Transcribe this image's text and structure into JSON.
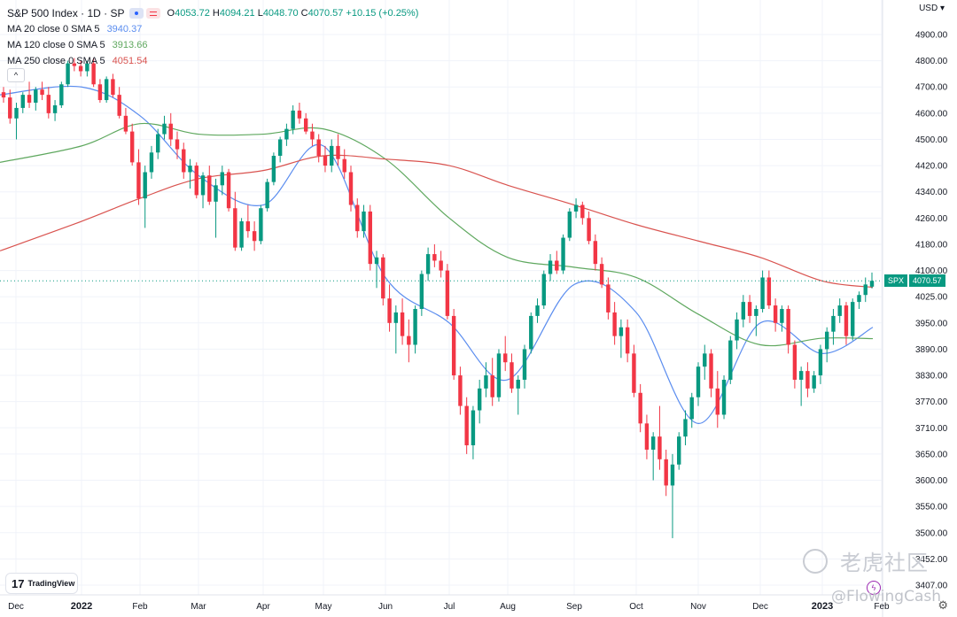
{
  "header": {
    "title": "S&P 500 Index · 1D · SP",
    "ohlc": {
      "open_label": "O",
      "open": "4053.72",
      "high_label": "H",
      "high": "4094.21",
      "low_label": "L",
      "low": "4048.70",
      "close_label": "C",
      "close": "4070.57",
      "change": "+10.15 (+0.25%)"
    },
    "currency": "USD"
  },
  "moving_averages": [
    {
      "label": "MA 20 close 0 SMA 5",
      "value": "3940.37",
      "color": "#5b8def"
    },
    {
      "label": "MA 120 close 0 SMA 5",
      "value": "3913.66",
      "color": "#5fa85f"
    },
    {
      "label": "MA 250 close 0 SMA 5",
      "value": "4051.54",
      "color": "#d9534f"
    }
  ],
  "collapse_label": "^",
  "price_badge": {
    "symbol": "SPX",
    "value": "4070.57"
  },
  "logo_text": "TradingView",
  "logo_mark": "17",
  "watermark_text": "老虎社区",
  "credit_text": "@FlowingCash",
  "colors": {
    "up": "#089981",
    "down": "#f23645",
    "last_price_line": "#089981",
    "grid": "#f0f3fa"
  },
  "chart_data": {
    "type": "candlestick",
    "title": "S&P 500 Index · 1D · SP",
    "y_axis": {
      "position": "right",
      "ticks": [
        "4900.00",
        "4800.00",
        "4700.00",
        "4600.00",
        "4500.00",
        "4420.00",
        "4340.00",
        "4260.00",
        "4180.00",
        "4100.00",
        "4025.00",
        "3950.00",
        "3890.00",
        "3830.00",
        "3770.00",
        "3710.00",
        "3650.00",
        "3600.00",
        "3550.00",
        "3500.00",
        "3452.00",
        "3407.00"
      ],
      "ylim": [
        3390,
        4960
      ]
    },
    "x_axis": {
      "ticks": [
        "Dec",
        "2022",
        "Feb",
        "Mar",
        "Apr",
        "May",
        "Jun",
        "Jul",
        "Aug",
        "Sep",
        "Oct",
        "Nov",
        "Dec",
        "2023",
        "Feb"
      ],
      "bold_ticks": [
        "2022",
        "2023"
      ]
    },
    "last_price": 4070.57,
    "series": [
      {
        "name": "MA 20 close 0 SMA 5",
        "x": [
          "Dec",
          "2022",
          "Feb",
          "Mar",
          "Apr",
          "May",
          "Jun",
          "Jul",
          "Aug",
          "Sep",
          "Oct",
          "Nov",
          "Dec",
          "2023",
          "Feb"
        ],
        "y": [
          4670,
          4700,
          4590,
          4390,
          4300,
          4480,
          4080,
          3950,
          3820,
          4060,
          3980,
          3720,
          3950,
          3880,
          3940
        ]
      },
      {
        "name": "MA 120 close 0 SMA 5",
        "x": [
          "Dec",
          "2022",
          "Feb",
          "Mar",
          "Apr",
          "May",
          "Jun",
          "Jul",
          "Aug",
          "Sep",
          "Oct",
          "Nov",
          "Dec",
          "2023",
          "Feb"
        ],
        "y": [
          4430,
          4480,
          4560,
          4520,
          4520,
          4540,
          4440,
          4260,
          4140,
          4110,
          4080,
          3975,
          3900,
          3915,
          3914
        ]
      },
      {
        "name": "MA 250 close 0 SMA 5",
        "x": [
          "Dec",
          "2022",
          "Feb",
          "Mar",
          "Apr",
          "May",
          "Jun",
          "Jul",
          "Aug",
          "Sep",
          "Oct",
          "Nov",
          "Dec",
          "2023",
          "Feb"
        ],
        "y": [
          4160,
          4250,
          4320,
          4380,
          4405,
          4450,
          4440,
          4420,
          4360,
          4300,
          4240,
          4190,
          4140,
          4070,
          4052
        ]
      }
    ],
    "candles": [
      {
        "o": 4680,
        "h": 4700,
        "l": 4640,
        "c": 4660
      },
      {
        "o": 4660,
        "h": 4690,
        "l": 4560,
        "c": 4580
      },
      {
        "o": 4580,
        "h": 4640,
        "l": 4500,
        "c": 4620
      },
      {
        "o": 4620,
        "h": 4680,
        "l": 4600,
        "c": 4670
      },
      {
        "o": 4670,
        "h": 4720,
        "l": 4620,
        "c": 4640
      },
      {
        "o": 4640,
        "h": 4700,
        "l": 4610,
        "c": 4690
      },
      {
        "o": 4690,
        "h": 4720,
        "l": 4650,
        "c": 4670
      },
      {
        "o": 4670,
        "h": 4700,
        "l": 4580,
        "c": 4600
      },
      {
        "o": 4600,
        "h": 4650,
        "l": 4570,
        "c": 4630
      },
      {
        "o": 4630,
        "h": 4720,
        "l": 4620,
        "c": 4710
      },
      {
        "o": 4710,
        "h": 4800,
        "l": 4700,
        "c": 4790
      },
      {
        "o": 4790,
        "h": 4810,
        "l": 4760,
        "c": 4780
      },
      {
        "o": 4780,
        "h": 4800,
        "l": 4740,
        "c": 4760
      },
      {
        "o": 4760,
        "h": 4800,
        "l": 4740,
        "c": 4790
      },
      {
        "o": 4790,
        "h": 4810,
        "l": 4700,
        "c": 4710
      },
      {
        "o": 4710,
        "h": 4730,
        "l": 4640,
        "c": 4650
      },
      {
        "o": 4650,
        "h": 4740,
        "l": 4640,
        "c": 4730
      },
      {
        "o": 4730,
        "h": 4750,
        "l": 4660,
        "c": 4670
      },
      {
        "o": 4670,
        "h": 4700,
        "l": 4580,
        "c": 4590
      },
      {
        "o": 4590,
        "h": 4620,
        "l": 4520,
        "c": 4530
      },
      {
        "o": 4530,
        "h": 4560,
        "l": 4420,
        "c": 4430
      },
      {
        "o": 4430,
        "h": 4470,
        "l": 4300,
        "c": 4320
      },
      {
        "o": 4320,
        "h": 4420,
        "l": 4230,
        "c": 4400
      },
      {
        "o": 4400,
        "h": 4480,
        "l": 4380,
        "c": 4460
      },
      {
        "o": 4460,
        "h": 4540,
        "l": 4440,
        "c": 4520
      },
      {
        "o": 4520,
        "h": 4590,
        "l": 4500,
        "c": 4560
      },
      {
        "o": 4560,
        "h": 4600,
        "l": 4480,
        "c": 4500
      },
      {
        "o": 4500,
        "h": 4530,
        "l": 4440,
        "c": 4470
      },
      {
        "o": 4470,
        "h": 4490,
        "l": 4380,
        "c": 4400
      },
      {
        "o": 4400,
        "h": 4440,
        "l": 4350,
        "c": 4420
      },
      {
        "o": 4420,
        "h": 4430,
        "l": 4320,
        "c": 4330
      },
      {
        "o": 4330,
        "h": 4400,
        "l": 4290,
        "c": 4390
      },
      {
        "o": 4390,
        "h": 4420,
        "l": 4300,
        "c": 4310
      },
      {
        "o": 4310,
        "h": 4380,
        "l": 4200,
        "c": 4360
      },
      {
        "o": 4360,
        "h": 4420,
        "l": 4330,
        "c": 4400
      },
      {
        "o": 4400,
        "h": 4410,
        "l": 4280,
        "c": 4290
      },
      {
        "o": 4290,
        "h": 4340,
        "l": 4160,
        "c": 4170
      },
      {
        "o": 4170,
        "h": 4260,
        "l": 4160,
        "c": 4250
      },
      {
        "o": 4250,
        "h": 4300,
        "l": 4200,
        "c": 4220
      },
      {
        "o": 4220,
        "h": 4250,
        "l": 4160,
        "c": 4190
      },
      {
        "o": 4190,
        "h": 4300,
        "l": 4180,
        "c": 4290
      },
      {
        "o": 4290,
        "h": 4380,
        "l": 4280,
        "c": 4370
      },
      {
        "o": 4370,
        "h": 4460,
        "l": 4360,
        "c": 4450
      },
      {
        "o": 4450,
        "h": 4510,
        "l": 4430,
        "c": 4500
      },
      {
        "o": 4500,
        "h": 4560,
        "l": 4480,
        "c": 4540
      },
      {
        "o": 4540,
        "h": 4630,
        "l": 4520,
        "c": 4610
      },
      {
        "o": 4610,
        "h": 4640,
        "l": 4560,
        "c": 4580
      },
      {
        "o": 4580,
        "h": 4600,
        "l": 4520,
        "c": 4530
      },
      {
        "o": 4530,
        "h": 4560,
        "l": 4480,
        "c": 4500
      },
      {
        "o": 4500,
        "h": 4520,
        "l": 4430,
        "c": 4450
      },
      {
        "o": 4450,
        "h": 4480,
        "l": 4400,
        "c": 4420
      },
      {
        "o": 4420,
        "h": 4500,
        "l": 4400,
        "c": 4480
      },
      {
        "o": 4480,
        "h": 4520,
        "l": 4420,
        "c": 4440
      },
      {
        "o": 4440,
        "h": 4470,
        "l": 4380,
        "c": 4400
      },
      {
        "o": 4400,
        "h": 4420,
        "l": 4280,
        "c": 4300
      },
      {
        "o": 4300,
        "h": 4320,
        "l": 4200,
        "c": 4220
      },
      {
        "o": 4220,
        "h": 4300,
        "l": 4200,
        "c": 4280
      },
      {
        "o": 4280,
        "h": 4300,
        "l": 4100,
        "c": 4120
      },
      {
        "o": 4120,
        "h": 4160,
        "l": 4050,
        "c": 4140
      },
      {
        "o": 4140,
        "h": 4150,
        "l": 4000,
        "c": 4020
      },
      {
        "o": 4020,
        "h": 4060,
        "l": 3930,
        "c": 3950
      },
      {
        "o": 3950,
        "h": 4000,
        "l": 3880,
        "c": 3980
      },
      {
        "o": 3980,
        "h": 4020,
        "l": 3900,
        "c": 3920
      },
      {
        "o": 3920,
        "h": 3960,
        "l": 3860,
        "c": 3900
      },
      {
        "o": 3900,
        "h": 4000,
        "l": 3880,
        "c": 3990
      },
      {
        "o": 3990,
        "h": 4100,
        "l": 3970,
        "c": 4090
      },
      {
        "o": 4090,
        "h": 4170,
        "l": 4070,
        "c": 4150
      },
      {
        "o": 4150,
        "h": 4180,
        "l": 4110,
        "c": 4130
      },
      {
        "o": 4130,
        "h": 4160,
        "l": 4080,
        "c": 4100
      },
      {
        "o": 4100,
        "h": 4120,
        "l": 3960,
        "c": 3970
      },
      {
        "o": 3970,
        "h": 3990,
        "l": 3820,
        "c": 3830
      },
      {
        "o": 3830,
        "h": 3850,
        "l": 3740,
        "c": 3760
      },
      {
        "o": 3760,
        "h": 3780,
        "l": 3650,
        "c": 3670
      },
      {
        "o": 3670,
        "h": 3760,
        "l": 3640,
        "c": 3750
      },
      {
        "o": 3750,
        "h": 3820,
        "l": 3720,
        "c": 3800
      },
      {
        "o": 3800,
        "h": 3860,
        "l": 3780,
        "c": 3830
      },
      {
        "o": 3830,
        "h": 3870,
        "l": 3760,
        "c": 3780
      },
      {
        "o": 3780,
        "h": 3890,
        "l": 3770,
        "c": 3880
      },
      {
        "o": 3880,
        "h": 3920,
        "l": 3840,
        "c": 3860
      },
      {
        "o": 3860,
        "h": 3880,
        "l": 3790,
        "c": 3800
      },
      {
        "o": 3800,
        "h": 3830,
        "l": 3740,
        "c": 3820
      },
      {
        "o": 3820,
        "h": 3900,
        "l": 3800,
        "c": 3890
      },
      {
        "o": 3890,
        "h": 3980,
        "l": 3880,
        "c": 3970
      },
      {
        "o": 3970,
        "h": 4020,
        "l": 3950,
        "c": 4000
      },
      {
        "o": 4000,
        "h": 4100,
        "l": 3990,
        "c": 4090
      },
      {
        "o": 4090,
        "h": 4150,
        "l": 4070,
        "c": 4130
      },
      {
        "o": 4130,
        "h": 4160,
        "l": 4090,
        "c": 4100
      },
      {
        "o": 4100,
        "h": 4210,
        "l": 4090,
        "c": 4200
      },
      {
        "o": 4200,
        "h": 4290,
        "l": 4190,
        "c": 4280
      },
      {
        "o": 4280,
        "h": 4320,
        "l": 4260,
        "c": 4300
      },
      {
        "o": 4300,
        "h": 4310,
        "l": 4240,
        "c": 4260
      },
      {
        "o": 4260,
        "h": 4280,
        "l": 4180,
        "c": 4190
      },
      {
        "o": 4190,
        "h": 4210,
        "l": 4100,
        "c": 4120
      },
      {
        "o": 4120,
        "h": 4140,
        "l": 4050,
        "c": 4060
      },
      {
        "o": 4060,
        "h": 4080,
        "l": 3960,
        "c": 3980
      },
      {
        "o": 3980,
        "h": 4010,
        "l": 3900,
        "c": 3920
      },
      {
        "o": 3920,
        "h": 3960,
        "l": 3870,
        "c": 3940
      },
      {
        "o": 3940,
        "h": 3960,
        "l": 3860,
        "c": 3880
      },
      {
        "o": 3880,
        "h": 3900,
        "l": 3780,
        "c": 3790
      },
      {
        "o": 3790,
        "h": 3810,
        "l": 3700,
        "c": 3720
      },
      {
        "o": 3720,
        "h": 3740,
        "l": 3640,
        "c": 3660
      },
      {
        "o": 3660,
        "h": 3700,
        "l": 3600,
        "c": 3690
      },
      {
        "o": 3690,
        "h": 3760,
        "l": 3620,
        "c": 3640
      },
      {
        "o": 3640,
        "h": 3660,
        "l": 3570,
        "c": 3590
      },
      {
        "o": 3590,
        "h": 3650,
        "l": 3490,
        "c": 3630
      },
      {
        "o": 3630,
        "h": 3700,
        "l": 3620,
        "c": 3690
      },
      {
        "o": 3690,
        "h": 3750,
        "l": 3670,
        "c": 3730
      },
      {
        "o": 3730,
        "h": 3790,
        "l": 3710,
        "c": 3780
      },
      {
        "o": 3780,
        "h": 3860,
        "l": 3760,
        "c": 3850
      },
      {
        "o": 3850,
        "h": 3900,
        "l": 3820,
        "c": 3880
      },
      {
        "o": 3880,
        "h": 3890,
        "l": 3780,
        "c": 3800
      },
      {
        "o": 3800,
        "h": 3840,
        "l": 3710,
        "c": 3740
      },
      {
        "o": 3740,
        "h": 3830,
        "l": 3730,
        "c": 3820
      },
      {
        "o": 3820,
        "h": 3920,
        "l": 3810,
        "c": 3910
      },
      {
        "o": 3910,
        "h": 3980,
        "l": 3890,
        "c": 3960
      },
      {
        "o": 3960,
        "h": 4030,
        "l": 3940,
        "c": 4010
      },
      {
        "o": 4010,
        "h": 4030,
        "l": 3950,
        "c": 3970
      },
      {
        "o": 3970,
        "h": 4000,
        "l": 3920,
        "c": 3990
      },
      {
        "o": 3990,
        "h": 4100,
        "l": 3980,
        "c": 4080
      },
      {
        "o": 4080,
        "h": 4100,
        "l": 3990,
        "c": 4000
      },
      {
        "o": 4000,
        "h": 4020,
        "l": 3930,
        "c": 3950
      },
      {
        "o": 3950,
        "h": 4000,
        "l": 3930,
        "c": 3990
      },
      {
        "o": 3990,
        "h": 4000,
        "l": 3880,
        "c": 3900
      },
      {
        "o": 3900,
        "h": 3910,
        "l": 3800,
        "c": 3820
      },
      {
        "o": 3820,
        "h": 3850,
        "l": 3760,
        "c": 3840
      },
      {
        "o": 3840,
        "h": 3860,
        "l": 3780,
        "c": 3800
      },
      {
        "o": 3800,
        "h": 3840,
        "l": 3790,
        "c": 3830
      },
      {
        "o": 3830,
        "h": 3900,
        "l": 3810,
        "c": 3890
      },
      {
        "o": 3890,
        "h": 3940,
        "l": 3860,
        "c": 3930
      },
      {
        "o": 3930,
        "h": 3990,
        "l": 3900,
        "c": 3970
      },
      {
        "o": 3970,
        "h": 4020,
        "l": 3950,
        "c": 4000
      },
      {
        "o": 4000,
        "h": 4010,
        "l": 3900,
        "c": 3920
      },
      {
        "o": 3920,
        "h": 4020,
        "l": 3910,
        "c": 4010
      },
      {
        "o": 4010,
        "h": 4040,
        "l": 3990,
        "c": 4030
      },
      {
        "o": 4030,
        "h": 4080,
        "l": 4010,
        "c": 4060
      },
      {
        "o": 4053.72,
        "h": 4094.21,
        "l": 4048.7,
        "c": 4070.57
      }
    ]
  }
}
